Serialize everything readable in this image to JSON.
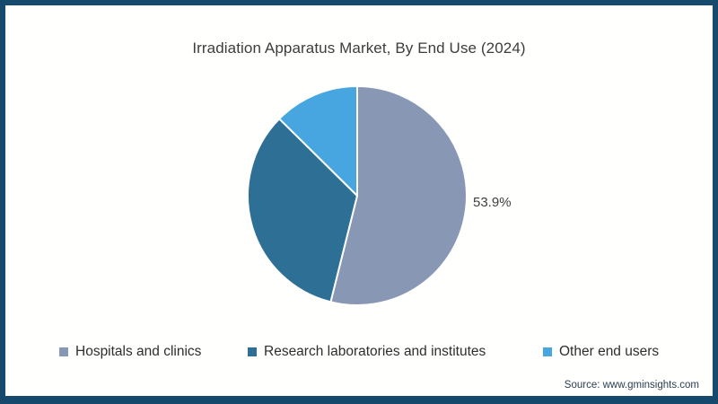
{
  "frame": {
    "border_color": "#17496C",
    "background": "#FFFFFF"
  },
  "title": "Irradiation Apparatus Market, By End Use (2024)",
  "chart_data": {
    "type": "pie",
    "title": "Irradiation Apparatus Market, By End Use (2024)",
    "categories": [
      "Hospitals and clinics",
      "Research laboratories and institutes",
      "Other end users"
    ],
    "values": [
      53.9,
      33.5,
      12.6
    ],
    "colors": [
      "#8797B4",
      "#2E7095",
      "#47A6DF"
    ],
    "data_labels": [
      "53.9%",
      "",
      ""
    ],
    "start_angle_deg": 0,
    "direction": "clockwise",
    "slice_border_color": "#FFFFFF",
    "legend_position": "bottom",
    "shown_value_label": "53.9%"
  },
  "legend": {
    "slugs": [
      "hospitals-and-clinics",
      "research-laboratories-and-institutes",
      "other-end-users"
    ]
  },
  "source": {
    "text": "Source: www.gminsights.com"
  }
}
